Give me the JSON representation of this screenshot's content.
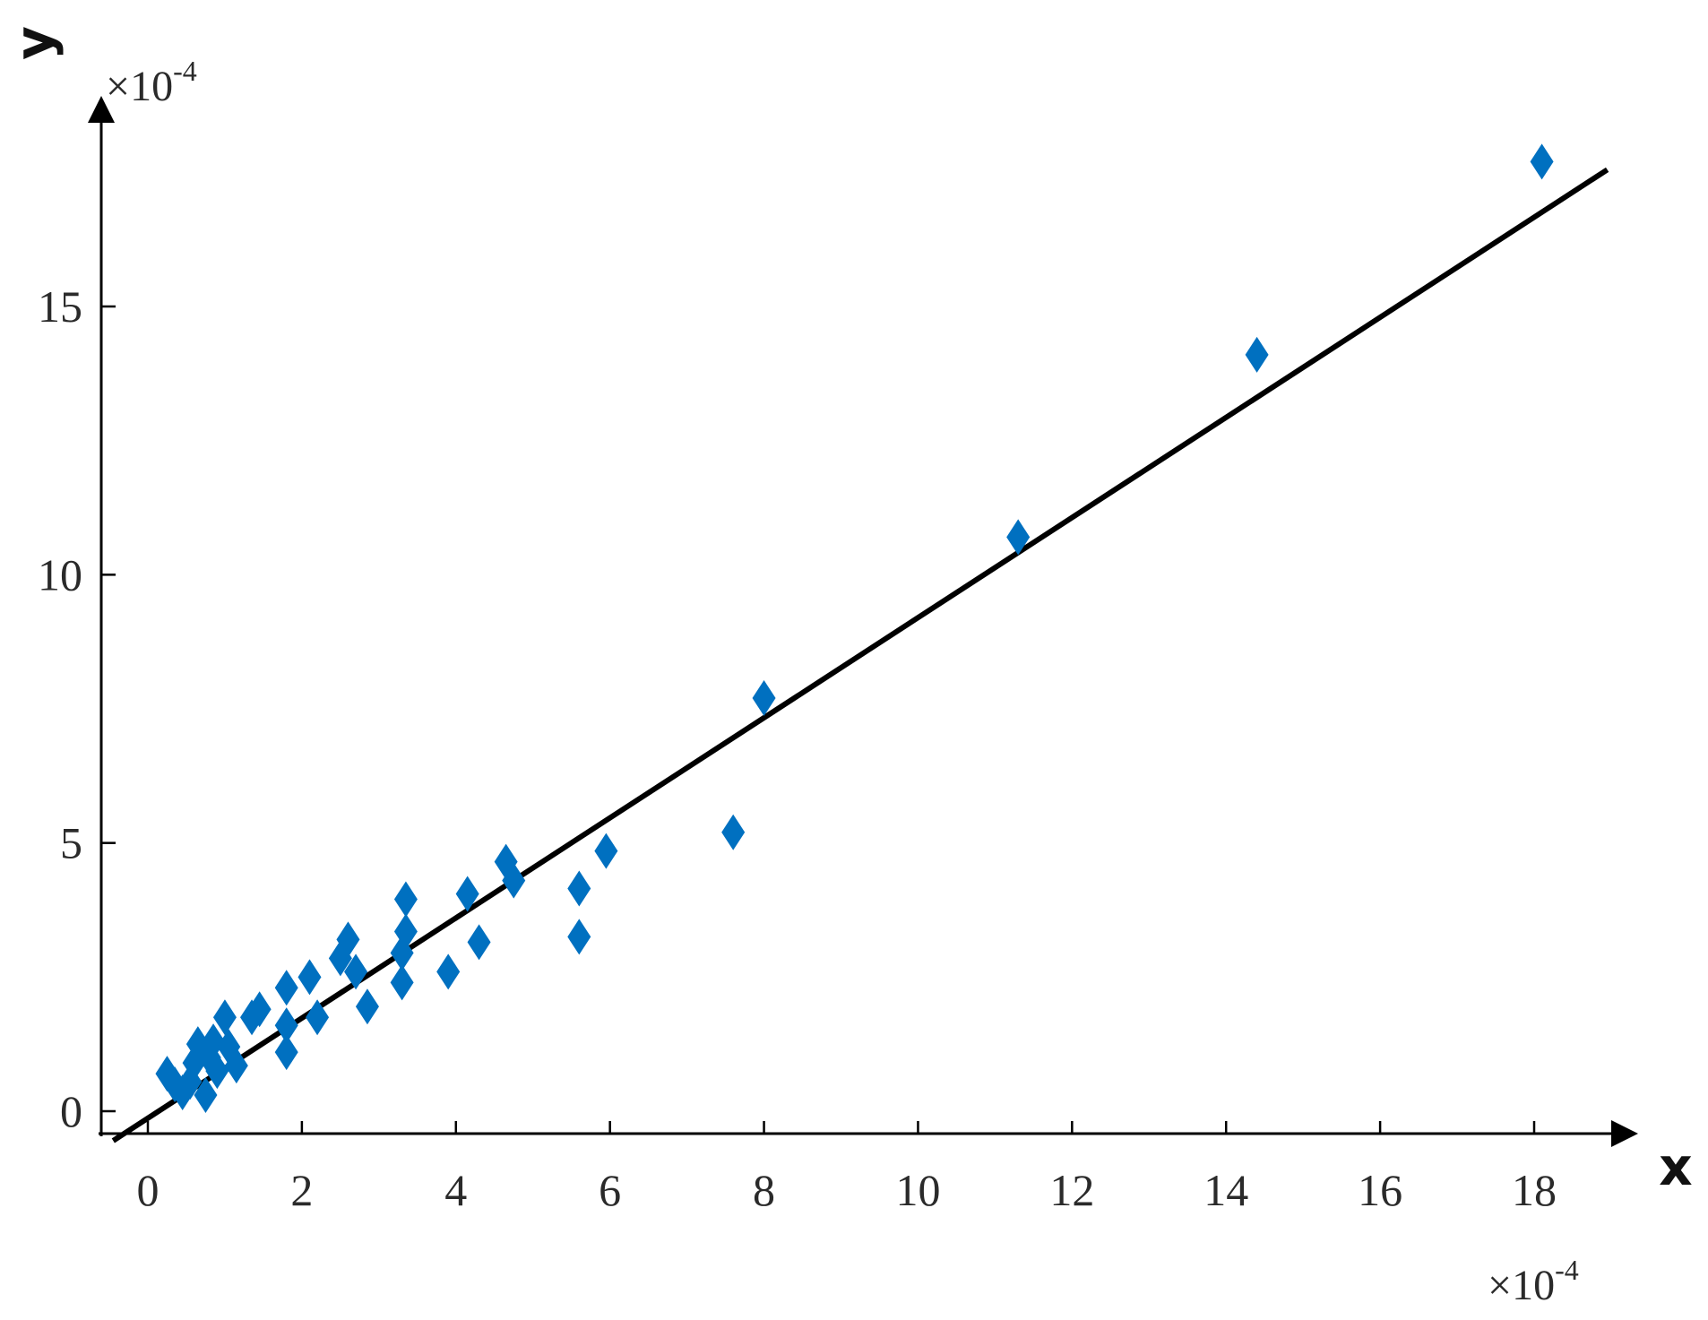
{
  "chart_data": {
    "type": "scatter",
    "title": "",
    "xlabel": "x",
    "ylabel": "y",
    "x_scale_base": "×10",
    "x_scale_exp": "-4",
    "y_scale_base": "×10",
    "y_scale_exp": "-4",
    "xlim": [
      -0.6,
      19.0
    ],
    "ylim": [
      -0.3,
      19.0
    ],
    "x_ticks": [
      0,
      2,
      4,
      6,
      8,
      10,
      12,
      14,
      16,
      18
    ],
    "y_ticks": [
      0,
      5,
      10,
      15
    ],
    "grid": false,
    "legend": "none",
    "marker": "diamond",
    "marker_color": "#0070c0",
    "line_color": "#000000",
    "points": [
      {
        "x": 0.25,
        "y": 0.7
      },
      {
        "x": 0.35,
        "y": 0.5
      },
      {
        "x": 0.45,
        "y": 0.35
      },
      {
        "x": 0.55,
        "y": 0.55
      },
      {
        "x": 0.6,
        "y": 0.9
      },
      {
        "x": 0.65,
        "y": 1.25
      },
      {
        "x": 0.75,
        "y": 0.3
      },
      {
        "x": 0.8,
        "y": 1.0
      },
      {
        "x": 0.85,
        "y": 1.3
      },
      {
        "x": 0.9,
        "y": 0.75
      },
      {
        "x": 1.0,
        "y": 1.75
      },
      {
        "x": 1.05,
        "y": 1.2
      },
      {
        "x": 1.15,
        "y": 0.85
      },
      {
        "x": 1.35,
        "y": 1.75
      },
      {
        "x": 1.45,
        "y": 1.9
      },
      {
        "x": 1.8,
        "y": 1.1
      },
      {
        "x": 1.8,
        "y": 1.6
      },
      {
        "x": 1.8,
        "y": 2.3
      },
      {
        "x": 2.1,
        "y": 2.5
      },
      {
        "x": 2.2,
        "y": 1.75
      },
      {
        "x": 2.5,
        "y": 2.85
      },
      {
        "x": 2.6,
        "y": 3.2
      },
      {
        "x": 2.7,
        "y": 2.6
      },
      {
        "x": 2.85,
        "y": 1.95
      },
      {
        "x": 3.3,
        "y": 2.4
      },
      {
        "x": 3.3,
        "y": 2.95
      },
      {
        "x": 3.35,
        "y": 3.35
      },
      {
        "x": 3.35,
        "y": 3.95
      },
      {
        "x": 3.9,
        "y": 2.6
      },
      {
        "x": 4.15,
        "y": 4.05
      },
      {
        "x": 4.3,
        "y": 3.15
      },
      {
        "x": 4.65,
        "y": 4.65
      },
      {
        "x": 4.75,
        "y": 4.3
      },
      {
        "x": 5.6,
        "y": 3.25
      },
      {
        "x": 5.6,
        "y": 4.15
      },
      {
        "x": 5.95,
        "y": 4.85
      },
      {
        "x": 7.6,
        "y": 5.2
      },
      {
        "x": 8.0,
        "y": 7.7
      },
      {
        "x": 11.3,
        "y": 10.7
      },
      {
        "x": 14.4,
        "y": 14.1
      },
      {
        "x": 18.1,
        "y": 17.7
      }
    ],
    "fit_line": {
      "x": [
        -0.45,
        18.95
      ],
      "y": [
        -0.55,
        17.55
      ]
    }
  }
}
